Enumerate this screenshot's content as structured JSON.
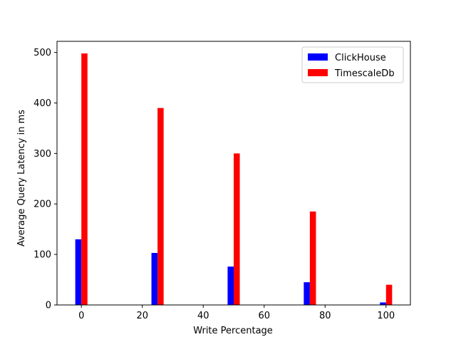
{
  "chart_data": {
    "type": "bar",
    "xlabel": "Write Percentage",
    "ylabel": "Average Query Latency in ms",
    "x": [
      0,
      25,
      50,
      75,
      100
    ],
    "xlim": [
      -8,
      108
    ],
    "ylim": [
      0,
      522
    ],
    "xticks": [
      0,
      20,
      40,
      60,
      80,
      100
    ],
    "yticks": [
      0,
      100,
      200,
      300,
      400,
      500
    ],
    "bar_width": 2,
    "series": [
      {
        "name": "ClickHouse",
        "color": "#0000ff",
        "offset": -1,
        "values": [
          130,
          103,
          76,
          45,
          5
        ]
      },
      {
        "name": "TimescaleDb",
        "color": "#ff0000",
        "offset": 1,
        "values": [
          498,
          390,
          300,
          185,
          40
        ]
      }
    ],
    "legend": {
      "position": "top-right"
    },
    "grid": false
  }
}
